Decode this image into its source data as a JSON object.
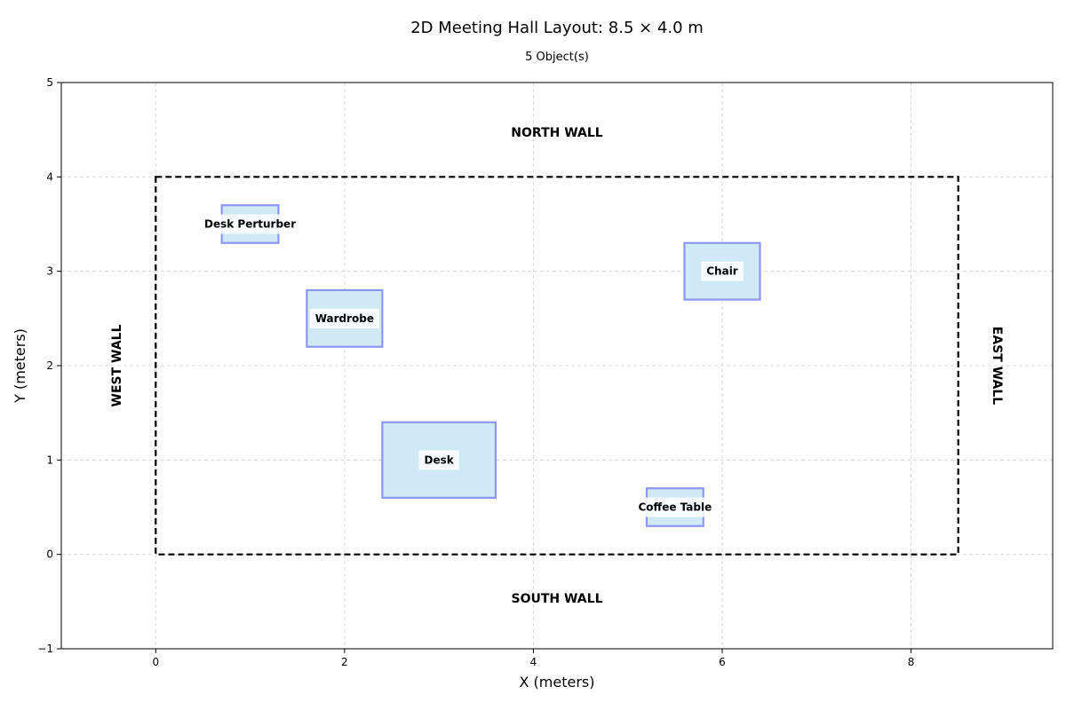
{
  "chart_data": {
    "type": "floor-plan",
    "title": "2D Meeting Hall Layout: 8.5 × 4.0 m",
    "subtitle": "5 Object(s)",
    "xlabel": "X (meters)",
    "ylabel": "Y (meters)",
    "xlim": [
      -1,
      9.5
    ],
    "ylim": [
      -1,
      5
    ],
    "xticks": [
      0,
      2,
      4,
      6,
      8
    ],
    "yticks": [
      -1,
      0,
      1,
      2,
      3,
      4,
      5
    ],
    "ytick_labels": [
      "−1",
      "0",
      "1",
      "2",
      "3",
      "4",
      "5"
    ],
    "grid": true,
    "room": {
      "x": [
        0,
        8.5
      ],
      "y": [
        0,
        4
      ]
    },
    "walls": {
      "north": "NORTH WALL",
      "south": "SOUTH WALL",
      "west": "WEST WALL",
      "east": "EAST WALL"
    },
    "objects": [
      {
        "name": "Desk Perturber",
        "x": [
          0.7,
          1.3
        ],
        "y": [
          3.3,
          3.7
        ]
      },
      {
        "name": "Chair",
        "x": [
          5.6,
          6.4
        ],
        "y": [
          2.7,
          3.3
        ]
      },
      {
        "name": "Wardrobe",
        "x": [
          1.6,
          2.4
        ],
        "y": [
          2.2,
          2.8
        ]
      },
      {
        "name": "Desk",
        "x": [
          2.4,
          3.6
        ],
        "y": [
          0.6,
          1.4
        ]
      },
      {
        "name": "Coffee Table",
        "x": [
          5.2,
          5.8
        ],
        "y": [
          0.3,
          0.7
        ]
      }
    ],
    "colors": {
      "object_fill": "#d0eaf5",
      "object_stroke": "#8c96f5",
      "room_outline": "#000000",
      "grid": "#d9d9d9"
    }
  }
}
